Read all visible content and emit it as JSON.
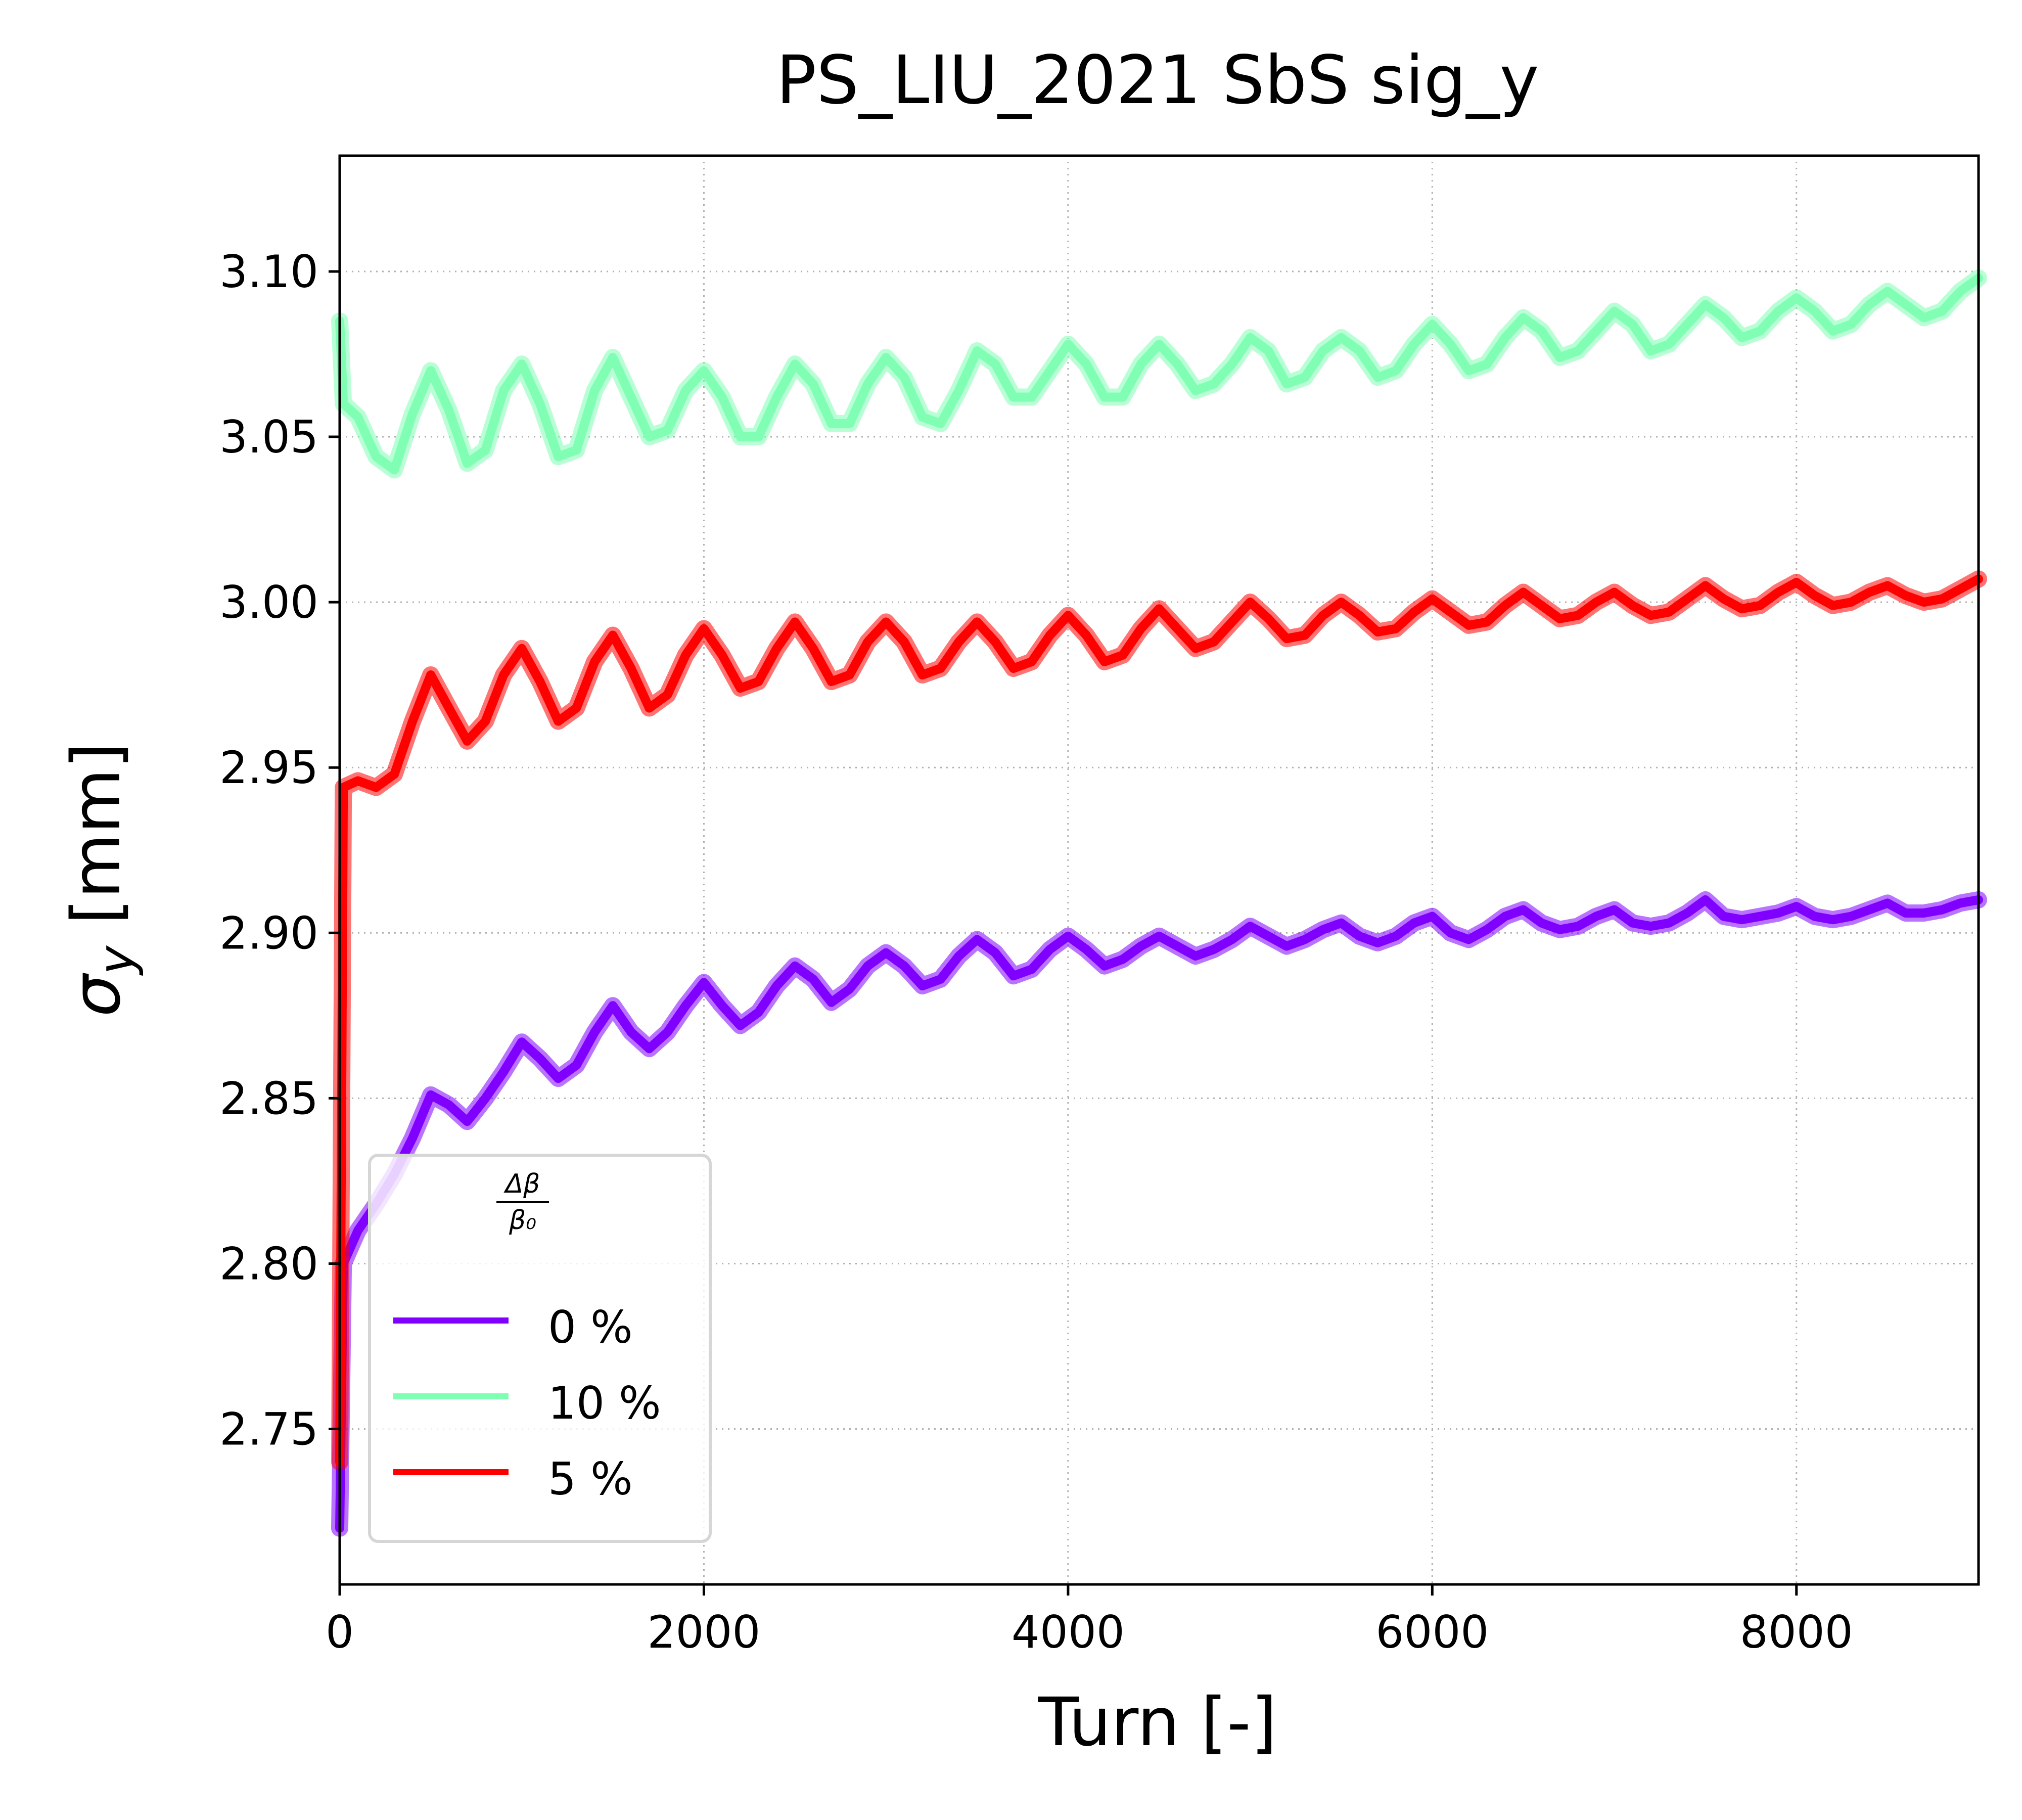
{
  "chart_data": {
    "type": "line",
    "title": "PS_LIU_2021 SbS sig_y",
    "xlabel": "Turn [-]",
    "ylabel": "σ_y [mm]",
    "ylabel_symbol": "σ",
    "ylabel_sub": "y",
    "ylabel_unit": " [mm]",
    "xlim": [
      0,
      9000
    ],
    "ylim": [
      2.703,
      3.135
    ],
    "xticks": [
      0,
      2000,
      4000,
      6000,
      8000
    ],
    "xtick_labels": [
      "0",
      "2000",
      "4000",
      "6000",
      "8000"
    ],
    "yticks": [
      2.75,
      2.8,
      2.85,
      2.9,
      2.95,
      3.0,
      3.05,
      3.1
    ],
    "ytick_labels": [
      "2.75",
      "2.80",
      "2.85",
      "2.90",
      "2.95",
      "3.00",
      "3.05",
      "3.10"
    ],
    "grid": true,
    "legend_placement": "lower-left",
    "legend_title": {
      "numerator": "Δβ",
      "denominator": "β₀"
    },
    "series": [
      {
        "name": "0 %",
        "color": "#8000ff",
        "points": [
          [
            0,
            2.72
          ],
          [
            20,
            2.8
          ],
          [
            100,
            2.81
          ],
          [
            200,
            2.818
          ],
          [
            300,
            2.827
          ],
          [
            400,
            2.838
          ],
          [
            500,
            2.851
          ],
          [
            600,
            2.848
          ],
          [
            700,
            2.843
          ],
          [
            800,
            2.85
          ],
          [
            900,
            2.858
          ],
          [
            1000,
            2.867
          ],
          [
            1100,
            2.862
          ],
          [
            1200,
            2.856
          ],
          [
            1300,
            2.86
          ],
          [
            1400,
            2.87
          ],
          [
            1500,
            2.878
          ],
          [
            1600,
            2.87
          ],
          [
            1700,
            2.865
          ],
          [
            1800,
            2.87
          ],
          [
            1900,
            2.878
          ],
          [
            2000,
            2.885
          ],
          [
            2100,
            2.878
          ],
          [
            2200,
            2.872
          ],
          [
            2300,
            2.876
          ],
          [
            2400,
            2.884
          ],
          [
            2500,
            2.89
          ],
          [
            2600,
            2.886
          ],
          [
            2700,
            2.879
          ],
          [
            2800,
            2.883
          ],
          [
            2900,
            2.89
          ],
          [
            3000,
            2.894
          ],
          [
            3100,
            2.89
          ],
          [
            3200,
            2.884
          ],
          [
            3300,
            2.886
          ],
          [
            3400,
            2.893
          ],
          [
            3500,
            2.898
          ],
          [
            3600,
            2.894
          ],
          [
            3700,
            2.887
          ],
          [
            3800,
            2.889
          ],
          [
            3900,
            2.895
          ],
          [
            4000,
            2.899
          ],
          [
            4100,
            2.895
          ],
          [
            4200,
            2.89
          ],
          [
            4300,
            2.892
          ],
          [
            4400,
            2.896
          ],
          [
            4500,
            2.899
          ],
          [
            4600,
            2.896
          ],
          [
            4700,
            2.893
          ],
          [
            4800,
            2.895
          ],
          [
            4900,
            2.898
          ],
          [
            5000,
            2.902
          ],
          [
            5100,
            2.899
          ],
          [
            5200,
            2.896
          ],
          [
            5300,
            2.898
          ],
          [
            5400,
            2.901
          ],
          [
            5500,
            2.903
          ],
          [
            5600,
            2.899
          ],
          [
            5700,
            2.897
          ],
          [
            5800,
            2.899
          ],
          [
            5900,
            2.903
          ],
          [
            6000,
            2.905
          ],
          [
            6100,
            2.9
          ],
          [
            6200,
            2.898
          ],
          [
            6300,
            2.901
          ],
          [
            6400,
            2.905
          ],
          [
            6500,
            2.907
          ],
          [
            6600,
            2.903
          ],
          [
            6700,
            2.901
          ],
          [
            6800,
            2.902
          ],
          [
            6900,
            2.905
          ],
          [
            7000,
            2.907
          ],
          [
            7100,
            2.903
          ],
          [
            7200,
            2.902
          ],
          [
            7300,
            2.903
          ],
          [
            7400,
            2.906
          ],
          [
            7500,
            2.91
          ],
          [
            7600,
            2.905
          ],
          [
            7700,
            2.904
          ],
          [
            7800,
            2.905
          ],
          [
            7900,
            2.906
          ],
          [
            8000,
            2.908
          ],
          [
            8100,
            2.905
          ],
          [
            8200,
            2.904
          ],
          [
            8300,
            2.905
          ],
          [
            8400,
            2.907
          ],
          [
            8500,
            2.909
          ],
          [
            8600,
            2.906
          ],
          [
            8700,
            2.906
          ],
          [
            8800,
            2.907
          ],
          [
            8900,
            2.909
          ],
          [
            9000,
            2.91
          ]
        ]
      },
      {
        "name": "10 %",
        "color": "#80ffb4",
        "points": [
          [
            0,
            3.085
          ],
          [
            20,
            3.06
          ],
          [
            100,
            3.056
          ],
          [
            200,
            3.044
          ],
          [
            300,
            3.04
          ],
          [
            400,
            3.057
          ],
          [
            500,
            3.07
          ],
          [
            600,
            3.058
          ],
          [
            700,
            3.042
          ],
          [
            800,
            3.046
          ],
          [
            900,
            3.064
          ],
          [
            1000,
            3.072
          ],
          [
            1100,
            3.06
          ],
          [
            1200,
            3.044
          ],
          [
            1300,
            3.046
          ],
          [
            1400,
            3.064
          ],
          [
            1500,
            3.074
          ],
          [
            1600,
            3.062
          ],
          [
            1700,
            3.05
          ],
          [
            1800,
            3.052
          ],
          [
            1900,
            3.064
          ],
          [
            2000,
            3.07
          ],
          [
            2100,
            3.062
          ],
          [
            2200,
            3.05
          ],
          [
            2300,
            3.05
          ],
          [
            2400,
            3.062
          ],
          [
            2500,
            3.072
          ],
          [
            2600,
            3.066
          ],
          [
            2700,
            3.054
          ],
          [
            2800,
            3.054
          ],
          [
            2900,
            3.066
          ],
          [
            3000,
            3.074
          ],
          [
            3100,
            3.068
          ],
          [
            3200,
            3.056
          ],
          [
            3300,
            3.054
          ],
          [
            3400,
            3.064
          ],
          [
            3500,
            3.076
          ],
          [
            3600,
            3.072
          ],
          [
            3700,
            3.062
          ],
          [
            3800,
            3.062
          ],
          [
            3900,
            3.07
          ],
          [
            4000,
            3.078
          ],
          [
            4100,
            3.072
          ],
          [
            4200,
            3.062
          ],
          [
            4300,
            3.062
          ],
          [
            4400,
            3.072
          ],
          [
            4500,
            3.078
          ],
          [
            4600,
            3.072
          ],
          [
            4700,
            3.064
          ],
          [
            4800,
            3.066
          ],
          [
            4900,
            3.072
          ],
          [
            5000,
            3.08
          ],
          [
            5100,
            3.076
          ],
          [
            5200,
            3.066
          ],
          [
            5300,
            3.068
          ],
          [
            5400,
            3.076
          ],
          [
            5500,
            3.08
          ],
          [
            5600,
            3.076
          ],
          [
            5700,
            3.068
          ],
          [
            5800,
            3.07
          ],
          [
            5900,
            3.078
          ],
          [
            6000,
            3.084
          ],
          [
            6100,
            3.078
          ],
          [
            6200,
            3.07
          ],
          [
            6300,
            3.072
          ],
          [
            6400,
            3.08
          ],
          [
            6500,
            3.086
          ],
          [
            6600,
            3.082
          ],
          [
            6700,
            3.074
          ],
          [
            6800,
            3.076
          ],
          [
            6900,
            3.082
          ],
          [
            7000,
            3.088
          ],
          [
            7100,
            3.084
          ],
          [
            7200,
            3.076
          ],
          [
            7300,
            3.078
          ],
          [
            7400,
            3.084
          ],
          [
            7500,
            3.09
          ],
          [
            7600,
            3.086
          ],
          [
            7700,
            3.08
          ],
          [
            7800,
            3.082
          ],
          [
            7900,
            3.088
          ],
          [
            8000,
            3.092
          ],
          [
            8100,
            3.088
          ],
          [
            8200,
            3.082
          ],
          [
            8300,
            3.084
          ],
          [
            8400,
            3.09
          ],
          [
            8500,
            3.094
          ],
          [
            8600,
            3.09
          ],
          [
            8700,
            3.086
          ],
          [
            8800,
            3.088
          ],
          [
            8900,
            3.094
          ],
          [
            9000,
            3.098
          ]
        ]
      },
      {
        "name": "5 %",
        "color": "#ff0000",
        "points": [
          [
            0,
            2.74
          ],
          [
            20,
            2.944
          ],
          [
            100,
            2.946
          ],
          [
            200,
            2.944
          ],
          [
            300,
            2.948
          ],
          [
            400,
            2.964
          ],
          [
            500,
            2.978
          ],
          [
            600,
            2.968
          ],
          [
            700,
            2.958
          ],
          [
            800,
            2.964
          ],
          [
            900,
            2.978
          ],
          [
            1000,
            2.986
          ],
          [
            1100,
            2.976
          ],
          [
            1200,
            2.964
          ],
          [
            1300,
            2.968
          ],
          [
            1400,
            2.982
          ],
          [
            1500,
            2.99
          ],
          [
            1600,
            2.98
          ],
          [
            1700,
            2.968
          ],
          [
            1800,
            2.972
          ],
          [
            1900,
            2.984
          ],
          [
            2000,
            2.992
          ],
          [
            2100,
            2.984
          ],
          [
            2200,
            2.974
          ],
          [
            2300,
            2.976
          ],
          [
            2400,
            2.986
          ],
          [
            2500,
            2.994
          ],
          [
            2600,
            2.986
          ],
          [
            2700,
            2.976
          ],
          [
            2800,
            2.978
          ],
          [
            2900,
            2.988
          ],
          [
            3000,
            2.994
          ],
          [
            3100,
            2.988
          ],
          [
            3200,
            2.978
          ],
          [
            3300,
            2.98
          ],
          [
            3400,
            2.988
          ],
          [
            3500,
            2.994
          ],
          [
            3600,
            2.988
          ],
          [
            3700,
            2.98
          ],
          [
            3800,
            2.982
          ],
          [
            3900,
            2.99
          ],
          [
            4000,
            2.996
          ],
          [
            4100,
            2.99
          ],
          [
            4200,
            2.982
          ],
          [
            4300,
            2.984
          ],
          [
            4400,
            2.992
          ],
          [
            4500,
            2.998
          ],
          [
            4600,
            2.992
          ],
          [
            4700,
            2.986
          ],
          [
            4800,
            2.988
          ],
          [
            4900,
            2.994
          ],
          [
            5000,
            3.0
          ],
          [
            5100,
            2.995
          ],
          [
            5200,
            2.989
          ],
          [
            5300,
            2.99
          ],
          [
            5400,
            2.996
          ],
          [
            5500,
            3.0
          ],
          [
            5600,
            2.996
          ],
          [
            5700,
            2.991
          ],
          [
            5800,
            2.992
          ],
          [
            5900,
            2.997
          ],
          [
            6000,
            3.001
          ],
          [
            6100,
            2.997
          ],
          [
            6200,
            2.993
          ],
          [
            6300,
            2.994
          ],
          [
            6400,
            2.999
          ],
          [
            6500,
            3.003
          ],
          [
            6600,
            2.999
          ],
          [
            6700,
            2.995
          ],
          [
            6800,
            2.996
          ],
          [
            6900,
            3.0
          ],
          [
            7000,
            3.003
          ],
          [
            7100,
            2.999
          ],
          [
            7200,
            2.996
          ],
          [
            7300,
            2.997
          ],
          [
            7400,
            3.001
          ],
          [
            7500,
            3.005
          ],
          [
            7600,
            3.001
          ],
          [
            7700,
            2.998
          ],
          [
            7800,
            2.999
          ],
          [
            7900,
            3.003
          ],
          [
            8000,
            3.006
          ],
          [
            8100,
            3.002
          ],
          [
            8200,
            2.999
          ],
          [
            8300,
            3.0
          ],
          [
            8400,
            3.003
          ],
          [
            8500,
            3.005
          ],
          [
            8600,
            3.002
          ],
          [
            8700,
            3.0
          ],
          [
            8800,
            3.001
          ],
          [
            8900,
            3.004
          ],
          [
            9000,
            3.007
          ]
        ]
      }
    ]
  }
}
